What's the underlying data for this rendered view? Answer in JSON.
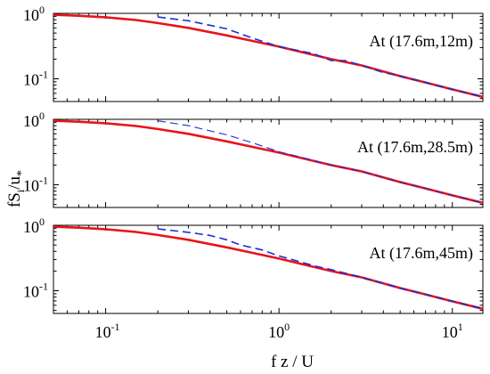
{
  "chart_data": {
    "type": "line",
    "xlabel": "f z / U",
    "ylabel": "fS_i/u_*",
    "ylabel_parts": {
      "main": "fS",
      "sub1": "i",
      "slash": "/u",
      "sub2": "*"
    },
    "x_scale": "log",
    "y_scale": "log",
    "xlim": [
      0.05,
      15
    ],
    "ylim": [
      0.045,
      1
    ],
    "x_ticks": [
      {
        "value": 0.1,
        "base": "10",
        "exp": "-1"
      },
      {
        "value": 1,
        "base": "10",
        "exp": "0"
      },
      {
        "value": 10,
        "base": "10",
        "exp": "1"
      }
    ],
    "y_ticks": [
      {
        "value": 0.1,
        "base": "10",
        "exp": "-1"
      },
      {
        "value": 1,
        "base": "10",
        "exp": "0"
      }
    ],
    "colors": {
      "model": "#e8141b",
      "measured": "#1c2fd1"
    },
    "panels": [
      {
        "annotation": "At (17.6m,12m)",
        "series": [
          {
            "style": "solid",
            "x": [
              0.05,
              0.07,
              0.1,
              0.15,
              0.2,
              0.3,
              0.5,
              0.7,
              1,
              1.5,
              2,
              3,
              5,
              7,
              10,
              15
            ],
            "y": [
              0.95,
              0.92,
              0.87,
              0.79,
              0.71,
              0.6,
              0.46,
              0.38,
              0.31,
              0.24,
              0.2,
              0.16,
              0.11,
              0.088,
              0.069,
              0.053
            ]
          },
          {
            "style": "dashed",
            "x": [
              0.2,
              0.3,
              0.5,
              0.7,
              1,
              1.3,
              1.6,
              2,
              2.4,
              3,
              4,
              5,
              7,
              10,
              15
            ],
            "y": [
              0.88,
              0.77,
              0.58,
              0.42,
              0.31,
              0.27,
              0.24,
              0.19,
              0.19,
              0.16,
              0.125,
              0.11,
              0.088,
              0.069,
              0.053
            ]
          }
        ]
      },
      {
        "annotation": "At (17.6m,28.5m)",
        "series": [
          {
            "style": "solid",
            "x": [
              0.05,
              0.07,
              0.1,
              0.15,
              0.2,
              0.3,
              0.5,
              0.7,
              1,
              1.5,
              2,
              3,
              5,
              7,
              10,
              15
            ],
            "y": [
              0.95,
              0.92,
              0.87,
              0.79,
              0.71,
              0.6,
              0.46,
              0.38,
              0.31,
              0.24,
              0.2,
              0.16,
              0.11,
              0.088,
              0.069,
              0.053
            ]
          },
          {
            "style": "dashed-thin",
            "x": [
              0.2,
              0.3,
              0.5,
              0.7,
              1,
              1.5,
              2,
              3,
              5,
              7,
              10,
              15
            ],
            "y": [
              0.95,
              0.8,
              0.58,
              0.44,
              0.32,
              0.245,
              0.2,
              0.16,
              0.11,
              0.088,
              0.069,
              0.053
            ]
          }
        ]
      },
      {
        "annotation": "At (17.6m,45m)",
        "series": [
          {
            "style": "solid",
            "x": [
              0.05,
              0.07,
              0.1,
              0.15,
              0.2,
              0.3,
              0.5,
              0.7,
              1,
              1.5,
              2,
              3,
              5,
              7,
              10,
              15
            ],
            "y": [
              0.95,
              0.92,
              0.87,
              0.79,
              0.71,
              0.6,
              0.46,
              0.38,
              0.31,
              0.24,
              0.2,
              0.16,
              0.11,
              0.088,
              0.069,
              0.053
            ]
          },
          {
            "style": "dashed",
            "x": [
              0.2,
              0.3,
              0.4,
              0.5,
              0.6,
              0.8,
              1,
              1.3,
              1.6,
              2,
              3,
              5,
              7,
              10,
              15
            ],
            "y": [
              0.88,
              0.78,
              0.7,
              0.6,
              0.5,
              0.42,
              0.34,
              0.28,
              0.24,
              0.21,
              0.16,
              0.11,
              0.088,
              0.069,
              0.053
            ]
          }
        ]
      }
    ]
  }
}
